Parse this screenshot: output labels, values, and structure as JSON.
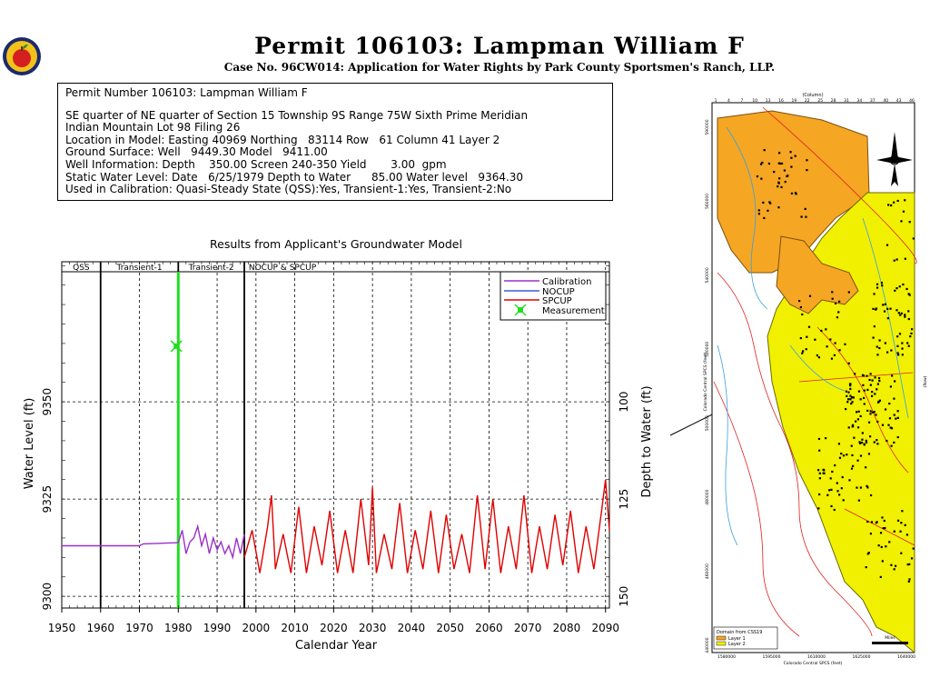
{
  "header": {
    "title": "Permit 106103:  Lampman William F",
    "subtitle": "Case No. 96CW014: Application for Water Rights by Park County Sportsmen's Ranch, LLP."
  },
  "info_box": {
    "heading": "Permit Number 106103: Lampman William F",
    "lines": [
      "SE quarter of NE quarter of Section 15 Township 9S Range 75W Sixth Prime Meridian",
      "Indian Mountain Lot 98 Filing 26",
      "Location in Model: Easting 40969 Northing   83114 Row   61 Column 41 Layer 2",
      "Ground Surface: Well   9449.30 Model   9411.00",
      "Well Information: Depth    350.00 Screen 240-350 Yield       3.00  gpm",
      "Static Water Level: Date   6/25/1979 Depth to Water      85.00 Water level   9364.30",
      "Used in Calibration: Quasi-Steady State (QSS):Yes, Transient-1:Yes, Transient-2:No"
    ]
  },
  "chart_data": {
    "type": "line",
    "title": "Results from Applicant's Groundwater Model",
    "xlabel": "Calendar Year",
    "ylabel": "Water Level (ft)",
    "y2label": "Depth to Water (ft)",
    "xlim": [
      1950,
      2091
    ],
    "ylim": [
      9297,
      9386
    ],
    "x_ticks": [
      1950,
      1960,
      1970,
      1980,
      1990,
      2000,
      2010,
      2020,
      2030,
      2040,
      2050,
      2060,
      2070,
      2080,
      2090
    ],
    "y_ticks": [
      9300,
      9325,
      9350
    ],
    "y2_ticks": [
      {
        "label": "100",
        "value": 9350
      },
      {
        "label": "125",
        "value": 9325
      },
      {
        "label": "150",
        "value": 9300
      }
    ],
    "periods": [
      {
        "label": "QSS",
        "start": 1950,
        "end": 1960
      },
      {
        "label": "Transient-1",
        "start": 1960,
        "end": 1980
      },
      {
        "label": "Transient-2",
        "start": 1980,
        "end": 1997
      },
      {
        "label": "NOCUP  &  SPCUP",
        "start": 1997,
        "end": 2091
      }
    ],
    "grid": true,
    "legend": {
      "position": "top-right",
      "entries": [
        {
          "label": "Calibration",
          "color": "#9b30c8",
          "kind": "line"
        },
        {
          "label": "NOCUP",
          "color": "#3b5bdb",
          "kind": "line"
        },
        {
          "label": "SPCUP",
          "color": "#e00000",
          "kind": "line"
        },
        {
          "label": "Measurement",
          "color": "#22dd22",
          "kind": "marker"
        }
      ]
    },
    "series": [
      {
        "name": "Calibration",
        "color": "#9b30c8",
        "x": [
          1950,
          1970,
          1971,
          1980,
          1981,
          1982,
          1983,
          1984,
          1985,
          1986,
          1987,
          1988,
          1989,
          1990,
          1991,
          1992,
          1993,
          1994,
          1995,
          1996,
          1997
        ],
        "y": [
          9313,
          9313,
          9313.5,
          9313.8,
          9317,
          9311,
          9314,
          9315,
          9318,
          9313,
          9316,
          9311,
          9315,
          9312,
          9314,
          9311,
          9313,
          9310,
          9315,
          9311,
          9316
        ]
      },
      {
        "name": "SPCUP",
        "color": "#e00000",
        "x": [
          1997,
          1999,
          2001,
          2003,
          2004,
          2005,
          2007,
          2009,
          2011,
          2013,
          2015,
          2017,
          2019,
          2021,
          2023,
          2025,
          2027,
          2029,
          2030,
          2031,
          2033,
          2035,
          2037,
          2039,
          2041,
          2043,
          2045,
          2047,
          2049,
          2051,
          2053,
          2055,
          2057,
          2059,
          2061,
          2063,
          2065,
          2067,
          2069,
          2071,
          2073,
          2075,
          2077,
          2079,
          2081,
          2083,
          2085,
          2087,
          2089,
          2090,
          2091
        ],
        "y": [
          9310,
          9317,
          9306,
          9318,
          9326,
          9307,
          9316,
          9306,
          9323,
          9306,
          9318,
          9308,
          9322,
          9306,
          9317,
          9306,
          9325,
          9308,
          9328,
          9306,
          9316,
          9307,
          9324,
          9306,
          9317,
          9307,
          9322,
          9306,
          9321,
          9307,
          9316,
          9306,
          9326,
          9307,
          9325,
          9306,
          9318,
          9307,
          9326,
          9306,
          9318,
          9307,
          9321,
          9308,
          9322,
          9306,
          9318,
          9307,
          9322,
          9330,
          9317
        ]
      }
    ],
    "measurement": {
      "x": 1979.5,
      "y": 9364.3
    }
  },
  "map": {
    "title_top": "(Column)",
    "ylabel_left": "Colorado Central SPCS (feet)",
    "ylabel_right": "(Row)",
    "xlabel_bottom": "Colorado Central SPCS (feet)",
    "col_ticks": [
      "1",
      "4",
      "7",
      "10",
      "13",
      "16",
      "19",
      "22",
      "25",
      "28",
      "31",
      "34",
      "37",
      "40",
      "43",
      "46"
    ],
    "easting_ticks": [
      "1580000",
      "1595000",
      "1610000",
      "1625000",
      "1640000"
    ],
    "northing_ticks": [
      "590000",
      "560000",
      "540000",
      "520000",
      "500000",
      "480000",
      "460000",
      "440000"
    ],
    "legend_title": "Domain from CSS19",
    "legend_items": [
      {
        "label": "Layer 1",
        "color": "#f5a623"
      },
      {
        "label": "Layer 2",
        "color": "#f0f000"
      }
    ],
    "scale_label": "Miles"
  }
}
